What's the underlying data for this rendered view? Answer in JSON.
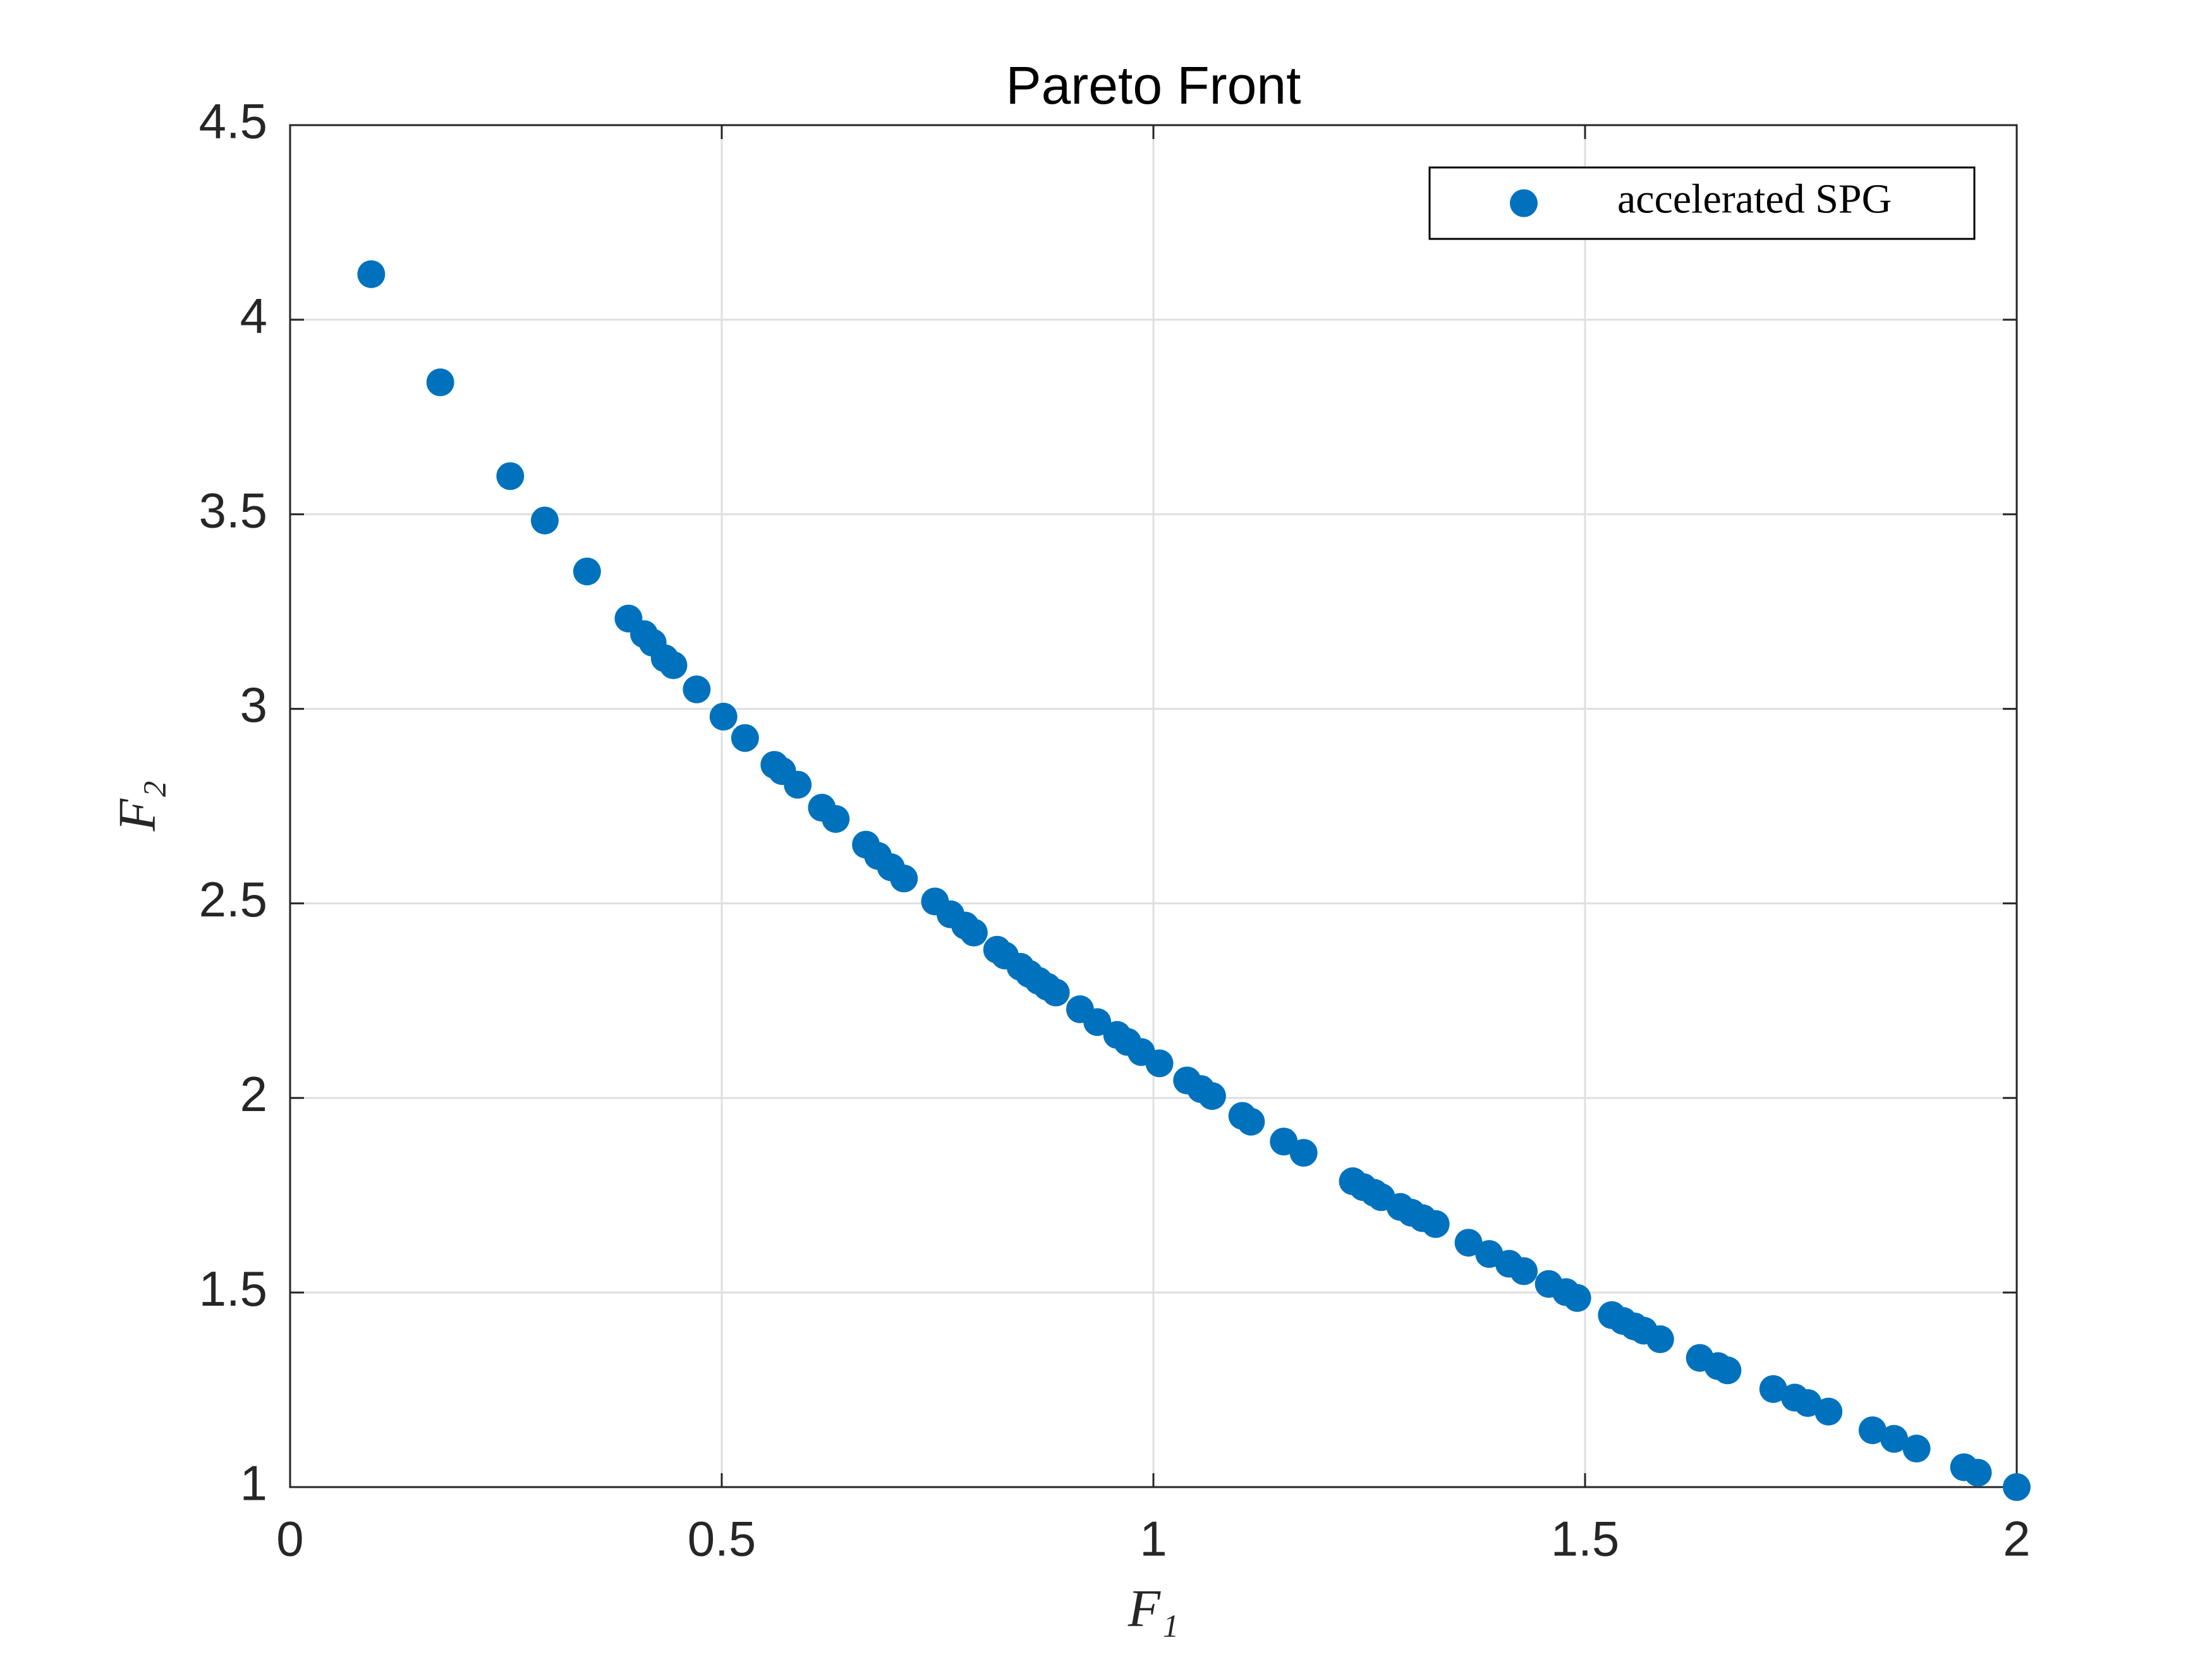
{
  "chart_data": {
    "type": "scatter",
    "title": "Pareto Front",
    "xlabel": "F₁",
    "ylabel": "F₂",
    "xlim": [
      0,
      2
    ],
    "ylim": [
      1,
      4.5
    ],
    "xticks": [
      0,
      0.5,
      1,
      1.5,
      2
    ],
    "yticks": [
      1,
      1.5,
      2,
      2.5,
      3,
      3.5,
      4,
      4.5
    ],
    "grid": true,
    "legend": "northeast",
    "series": [
      {
        "name": "accelerated SPG",
        "color": "#0072bd",
        "x": [
          0.094,
          0.174,
          0.255,
          0.295,
          0.344,
          0.392,
          0.41,
          0.42,
          0.434,
          0.444,
          0.471,
          0.502,
          0.527,
          0.561,
          0.57,
          0.588,
          0.616,
          0.632,
          0.667,
          0.681,
          0.696,
          0.711,
          0.747,
          0.765,
          0.782,
          0.792,
          0.819,
          0.828,
          0.846,
          0.856,
          0.867,
          0.877,
          0.887,
          0.915,
          0.935,
          0.958,
          0.97,
          0.986,
          1.007,
          1.039,
          1.055,
          1.068,
          1.103,
          1.113,
          1.151,
          1.174,
          1.231,
          1.243,
          1.256,
          1.264,
          1.286,
          1.299,
          1.312,
          1.327,
          1.365,
          1.389,
          1.412,
          1.429,
          1.458,
          1.478,
          1.491,
          1.531,
          1.544,
          1.557,
          1.568,
          1.587,
          1.633,
          1.654,
          1.665,
          1.718,
          1.743,
          1.758,
          1.782,
          1.833,
          1.858,
          1.884,
          1.939,
          1.955,
          2.0
        ],
        "values": [
          4.117,
          3.839,
          3.598,
          3.484,
          3.353,
          3.232,
          3.192,
          3.17,
          3.13,
          3.112,
          3.05,
          2.98,
          2.925,
          2.856,
          2.84,
          2.805,
          2.746,
          2.717,
          2.651,
          2.622,
          2.593,
          2.564,
          2.505,
          2.472,
          2.443,
          2.425,
          2.381,
          2.366,
          2.337,
          2.319,
          2.301,
          2.286,
          2.271,
          2.228,
          2.195,
          2.162,
          2.144,
          2.118,
          2.089,
          2.045,
          2.023,
          2.005,
          1.954,
          1.939,
          1.888,
          1.859,
          1.786,
          1.771,
          1.756,
          1.745,
          1.72,
          1.705,
          1.691,
          1.676,
          1.628,
          1.599,
          1.574,
          1.555,
          1.522,
          1.501,
          1.486,
          1.442,
          1.427,
          1.413,
          1.402,
          1.38,
          1.332,
          1.311,
          1.3,
          1.252,
          1.23,
          1.216,
          1.194,
          1.146,
          1.124,
          1.099,
          1.051,
          1.037,
          1.0
        ]
      }
    ]
  }
}
